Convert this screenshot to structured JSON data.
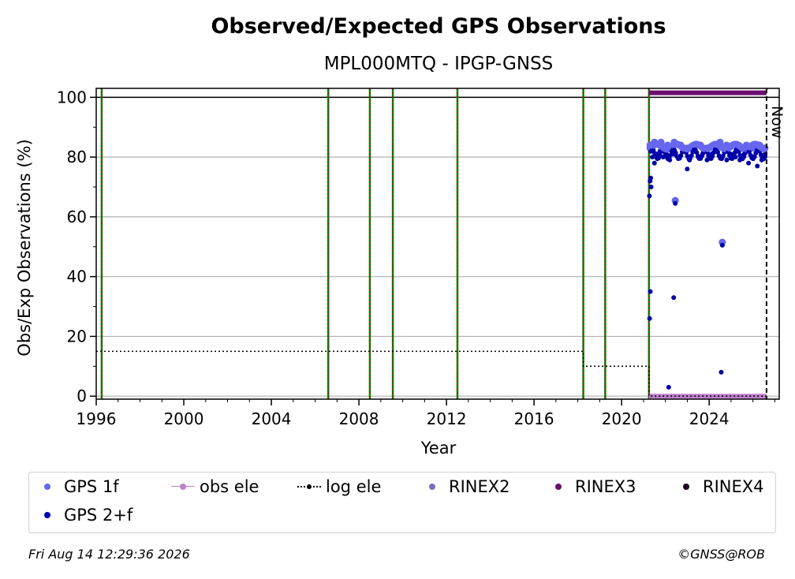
{
  "chart_data": {
    "type": "scatter",
    "title": "Observed/Expected GPS Observations",
    "subtitle": "MPL000MTQ - IPGP-GNSS",
    "xlabel": "Year",
    "ylabel": "Obs/Exp Observations (%)",
    "xlim": [
      1996.0,
      2027.2
    ],
    "ylim": [
      -1,
      103
    ],
    "x_ticks": [
      "1996",
      "2000",
      "2004",
      "2008",
      "2012",
      "2016",
      "2020",
      "2024"
    ],
    "x_tick_values": [
      1996,
      2000,
      2004,
      2008,
      2012,
      2016,
      2020,
      2024
    ],
    "y_ticks": [
      "0",
      "20",
      "40",
      "60",
      "80",
      "100"
    ],
    "y_tick_values": [
      0,
      20,
      40,
      60,
      80,
      100
    ],
    "grid": "horizontal",
    "event_lines": [
      1996.25,
      2006.6,
      2008.5,
      2009.55,
      2012.5,
      2018.25,
      2019.25,
      2021.25
    ],
    "now_line": 2026.62,
    "now_label": "Now",
    "log_ele": {
      "x": [
        1996.0,
        2018.25,
        2018.25,
        2021.25,
        2021.25,
        2026.62,
        2026.62
      ],
      "y": [
        15,
        15,
        10,
        10,
        0,
        0,
        0
      ]
    },
    "rinex3_bar": {
      "x_start": 2021.25,
      "x_end": 2026.62,
      "y": 101.5
    },
    "obs_ele_bar": {
      "x_start": 2021.25,
      "x_end": 2026.62,
      "y": 0
    },
    "series": [
      {
        "name": "GPS 1f",
        "color": "#6666ee",
        "x": [
          2021.3,
          2021.5,
          2021.8,
          2022.1,
          2022.4,
          2022.7,
          2023.0,
          2023.3,
          2023.6,
          2023.9,
          2024.2,
          2024.5,
          2024.8,
          2025.1,
          2025.4,
          2025.7,
          2026.0,
          2026.3,
          2026.55,
          2022.45,
          2024.6
        ],
        "y": [
          84,
          85,
          85,
          84,
          85,
          84,
          83,
          84,
          84,
          83,
          84,
          85,
          84,
          84,
          83,
          84,
          83,
          84,
          83,
          65.5,
          51.5
        ]
      },
      {
        "name": "GPS 2+f",
        "color": "#0000aa",
        "x": [
          2021.27,
          2021.3,
          2021.33,
          2021.35,
          2021.4,
          2021.5,
          2021.6,
          2021.75,
          2021.9,
          2022.05,
          2022.2,
          2022.38,
          2022.4,
          2022.45,
          2022.6,
          2022.8,
          2023.0,
          2023.1,
          2023.3,
          2023.5,
          2023.7,
          2023.9,
          2024.1,
          2024.3,
          2024.55,
          2024.6,
          2024.8,
          2025.0,
          2025.2,
          2025.4,
          2025.6,
          2025.8,
          2026.0,
          2026.2,
          2026.4,
          2026.55,
          2022.15,
          2021.28,
          2021.31
        ],
        "y": [
          67,
          72,
          73,
          70,
          80,
          78,
          81,
          82,
          80,
          81,
          79,
          33,
          81,
          64.5,
          80,
          82,
          76,
          79,
          82,
          80,
          81,
          79,
          81,
          82,
          8,
          50.5,
          79,
          81,
          80,
          79,
          81,
          78,
          80,
          77,
          79,
          81,
          3,
          26,
          35
        ]
      },
      {
        "name": "obs ele",
        "color": "#bf7fcf",
        "x": [],
        "y": []
      },
      {
        "name": "log ele",
        "color": "#000000",
        "x": [],
        "y": []
      },
      {
        "name": "RINEX2",
        "color": "#7e6bbd",
        "x": [],
        "y": []
      },
      {
        "name": "RINEX3",
        "color": "#6a0f6e",
        "x": [],
        "y": []
      },
      {
        "name": "RINEX4",
        "color": "#1a0322",
        "x": [],
        "y": []
      }
    ]
  },
  "legend": {
    "items": [
      {
        "label": "GPS 1f",
        "color": "#6666ee",
        "style": "dot"
      },
      {
        "label": "obs ele",
        "color": "#bf7fcf",
        "style": "dotline"
      },
      {
        "label": "log ele",
        "color": "#000000",
        "style": "dotdash"
      },
      {
        "label": "RINEX2",
        "color": "#7e6bbd",
        "style": "dot"
      },
      {
        "label": "RINEX3",
        "color": "#6a0f6e",
        "style": "dot"
      },
      {
        "label": "RINEX4",
        "color": "#1a0322",
        "style": "dot"
      },
      {
        "label": "GPS 2+f",
        "color": "#0000aa",
        "style": "dot"
      }
    ]
  },
  "footer": {
    "timestamp": "Fri Aug 14 12:29:36 2026",
    "credit": "©GNSS@ROB"
  }
}
